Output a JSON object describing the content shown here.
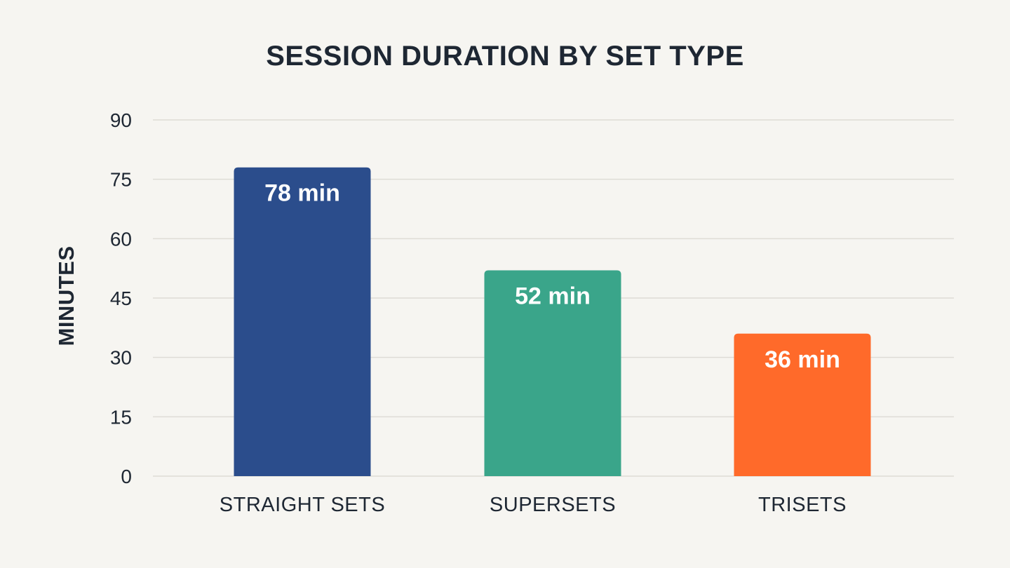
{
  "chart_data": {
    "type": "bar",
    "title": "SESSION DURATION BY SET TYPE",
    "xlabel": "",
    "ylabel": "MINUTES",
    "categories": [
      "STRAIGHT SETS",
      "SUPERSETS",
      "TRISETS"
    ],
    "values": [
      78,
      52,
      36
    ],
    "data_labels": [
      "78 min",
      "52 min",
      "36 min"
    ],
    "colors": [
      "#2b4d8c",
      "#3aa58a",
      "#ff6a2a"
    ],
    "ylim": [
      0,
      90
    ],
    "yticks": [
      0,
      15,
      30,
      45,
      60,
      75,
      90
    ],
    "grid": true,
    "legend": "none"
  }
}
